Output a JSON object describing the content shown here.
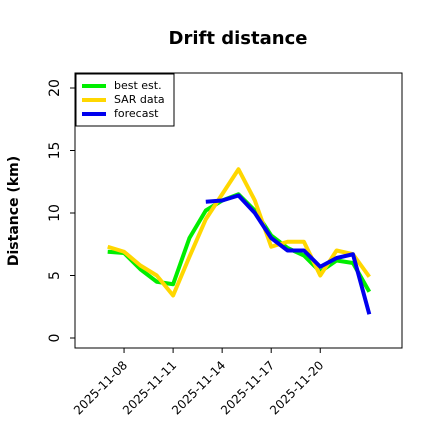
{
  "chart_data": {
    "type": "line",
    "title": "Drift distance",
    "y_label": "Distance (km)",
    "x": [
      "2025-11-07",
      "2025-11-08",
      "2025-11-09",
      "2025-11-10",
      "2025-11-11",
      "2025-11-12",
      "2025-11-13",
      "2025-11-14",
      "2025-11-15",
      "2025-11-16",
      "2025-11-17",
      "2025-11-18",
      "2025-11-19",
      "2025-11-20",
      "2025-11-21",
      "2025-11-22",
      "2025-11-23"
    ],
    "series": [
      {
        "name": "best est.",
        "color": "#00ee00",
        "values": [
          6.9,
          6.8,
          5.5,
          4.5,
          4.3,
          8.0,
          10.2,
          11.0,
          11.5,
          10.2,
          8.2,
          7.2,
          6.6,
          5.3,
          6.2,
          6.0,
          3.7
        ]
      },
      {
        "name": "SAR data",
        "color": "#ffd700",
        "values": [
          7.3,
          6.9,
          5.8,
          5.0,
          3.4,
          6.5,
          9.5,
          11.5,
          13.5,
          11.0,
          7.3,
          7.7,
          7.7,
          5.0,
          7.0,
          6.7,
          4.9
        ]
      },
      {
        "name": "forecast",
        "color": "#0000ee",
        "values": [
          null,
          null,
          null,
          null,
          null,
          null,
          10.9,
          11.0,
          11.4,
          10.0,
          8.0,
          7.0,
          7.0,
          5.7,
          6.4,
          6.7,
          1.9
        ]
      }
    ],
    "xlim": [
      "2025-11-05",
      "2025-11-25"
    ],
    "xticks": [
      "2025-11-08",
      "2025-11-11",
      "2025-11-14",
      "2025-11-17",
      "2025-11-20"
    ],
    "ylim": [
      -0.8,
      21.2
    ],
    "yticks": [
      0,
      5,
      10,
      15,
      20
    ],
    "legend": "upper left"
  }
}
